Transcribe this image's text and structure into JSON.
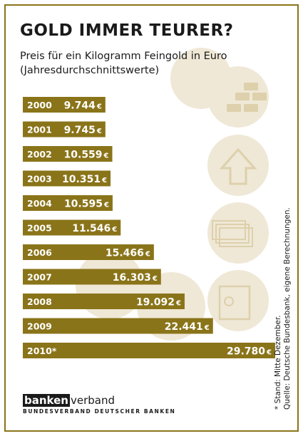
{
  "title": "GOLD IMMER TEURER?",
  "subtitle_line1": "Preis für ein Kilogramm Feingold in Euro",
  "subtitle_line2": "(Jahresdurchschnittswerte)",
  "notes": {
    "line1": "* Stand: Mitte Dezember.",
    "line2": "Quelle: Deutsche Bundesbank, eigene Berechnungen."
  },
  "logo": {
    "boxed": "banken",
    "rest": "verband",
    "sub": "BUNDESVERBAND DEUTSCHER BANKEN"
  },
  "colors": {
    "bar": "#8a7419",
    "decor": "#efe8d6",
    "decor_icon": "#ddd0ab"
  },
  "chart_data": {
    "type": "bar",
    "orientation": "horizontal",
    "unit": "€",
    "categories": [
      "2000",
      "2001",
      "2002",
      "2003",
      "2004",
      "2005",
      "2006",
      "2007",
      "2008",
      "2009",
      "2010*"
    ],
    "values": [
      9744,
      9745,
      10559,
      10351,
      10595,
      11546,
      15466,
      16303,
      19092,
      22441,
      29780
    ],
    "value_labels": [
      "9.744",
      "9.745",
      "10.559",
      "10.351",
      "10.595",
      "11.546",
      "15.466",
      "16.303",
      "19.092",
      "22.441",
      "29.780"
    ]
  }
}
